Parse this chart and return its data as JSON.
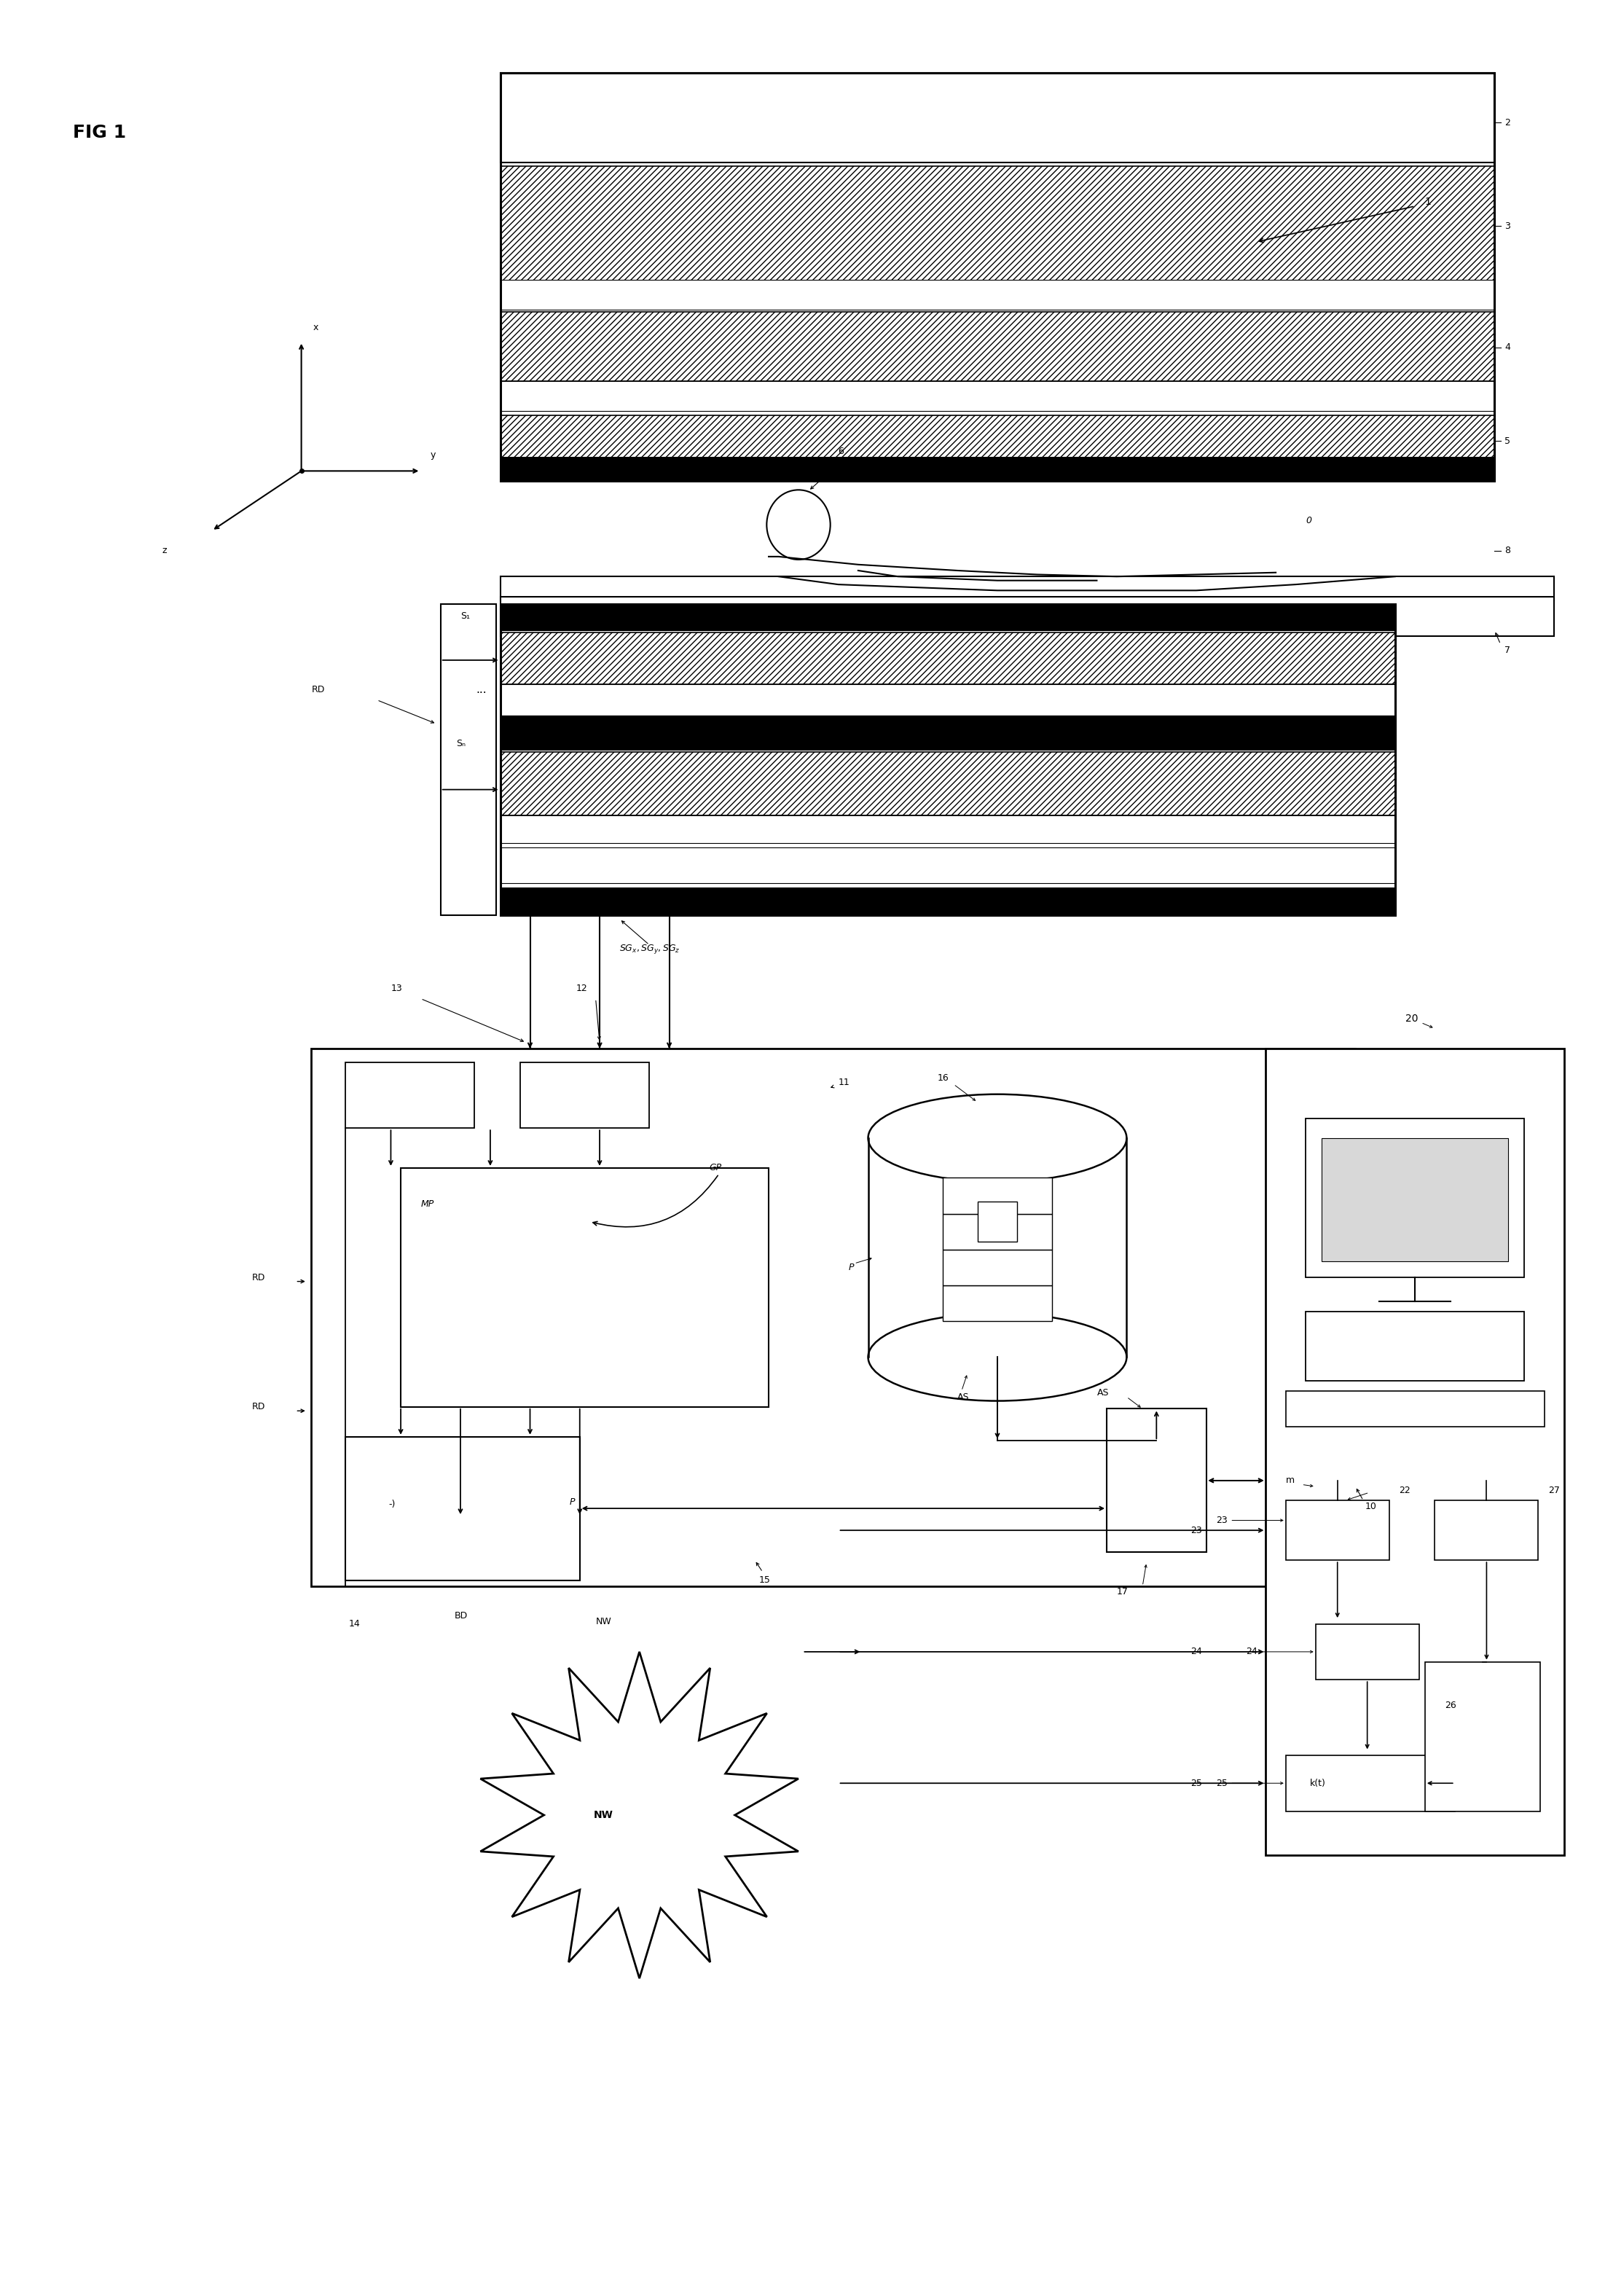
{
  "background_color": "#ffffff",
  "fig_label": "FIG 1",
  "labels": {
    "ref1": "1",
    "ref2": "2",
    "ref3": "3",
    "ref4": "4",
    "ref5": "5",
    "ref6": "6",
    "ref7": "7",
    "ref8": "8",
    "ref0": "0",
    "ref10": "10",
    "ref11": "11",
    "ref12": "12",
    "ref13": "13",
    "ref14": "14",
    "ref15": "15",
    "ref16": "16",
    "ref17": "17",
    "ref20": "20",
    "ref22": "22",
    "ref23": "23",
    "ref24": "24",
    "ref25": "25",
    "ref26": "26",
    "ref27": "27",
    "refm": "m",
    "refRD": "RD",
    "refS1": "S₁",
    "refSN": "Sₙ",
    "refSGx": "SG",
    "refSGy": "SG",
    "refSGz": "SG",
    "refGP": "GP",
    "refMP": "MP",
    "refAS": "AS",
    "refBD": "BD",
    "refP": "P",
    "refkt": "k(t)",
    "refNW": "NW",
    "axis_x": "x",
    "axis_y": "y",
    "axis_z": "z"
  }
}
